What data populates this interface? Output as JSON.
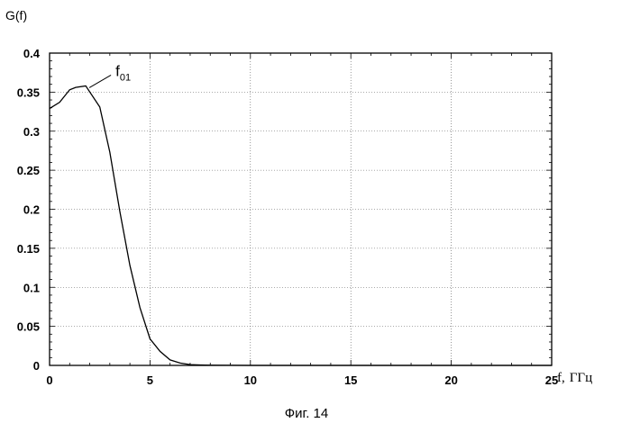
{
  "chart_data": {
    "type": "line",
    "title": "",
    "ylabel": "G(f)",
    "xlabel_prefix": "f,",
    "xlabel_unit": "ГГц",
    "caption": "Фиг. 14",
    "xlim": [
      0,
      25
    ],
    "ylim": [
      0,
      0.4
    ],
    "grid": true,
    "x_ticks": [
      0,
      5,
      10,
      15,
      20,
      25
    ],
    "y_ticks": [
      0,
      0.05,
      0.1,
      0.15,
      0.2,
      0.25,
      0.3,
      0.35,
      0.4
    ],
    "x_tick_labels": [
      "0",
      "5",
      "10",
      "15",
      "20",
      "25"
    ],
    "y_tick_labels": [
      "0",
      "0.05",
      "0.1",
      "0.15",
      "0.2",
      "0.25",
      "0.3",
      "0.35",
      "0.4"
    ],
    "annotation": {
      "text_main": "f",
      "text_sub": "01",
      "x": 1.8,
      "y": 0.358
    },
    "series": [
      {
        "x": [
          0,
          0.5,
          1,
          1.3,
          1.8,
          2.5,
          3,
          3.5,
          4,
          4.5,
          5,
          5.5,
          6,
          6.5,
          7,
          7.5,
          8,
          9,
          10,
          15,
          20,
          25
        ],
        "values": [
          0.329,
          0.337,
          0.353,
          0.356,
          0.358,
          0.331,
          0.273,
          0.197,
          0.128,
          0.074,
          0.034,
          0.018,
          0.007,
          0.003,
          0.001,
          0.0005,
          0.0002,
          0.0001,
          0,
          0,
          0,
          0
        ]
      }
    ]
  }
}
